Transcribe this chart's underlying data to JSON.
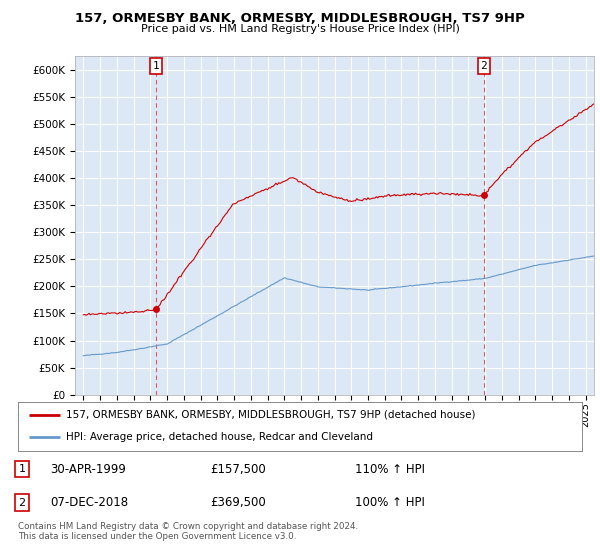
{
  "title": "157, ORMESBY BANK, ORMESBY, MIDDLESBROUGH, TS7 9HP",
  "subtitle": "Price paid vs. HM Land Registry's House Price Index (HPI)",
  "ylabel_ticks": [
    "£0",
    "£50K",
    "£100K",
    "£150K",
    "£200K",
    "£250K",
    "£300K",
    "£350K",
    "£400K",
    "£450K",
    "£500K",
    "£550K",
    "£600K"
  ],
  "ytick_vals": [
    0,
    50000,
    100000,
    150000,
    200000,
    250000,
    300000,
    350000,
    400000,
    450000,
    500000,
    550000,
    600000
  ],
  "ylim": [
    0,
    625000
  ],
  "xlim_start": 1994.5,
  "xlim_end": 2025.5,
  "sale1_x": 1999.33,
  "sale1_y": 157500,
  "sale2_x": 2018.92,
  "sale2_y": 369500,
  "legend_line1": "157, ORMESBY BANK, ORMESBY, MIDDLESBROUGH, TS7 9HP (detached house)",
  "legend_line2": "HPI: Average price, detached house, Redcar and Cleveland",
  "table_row1": [
    "1",
    "30-APR-1999",
    "£157,500",
    "110% ↑ HPI"
  ],
  "table_row2": [
    "2",
    "07-DEC-2018",
    "£369,500",
    "100% ↑ HPI"
  ],
  "footer": "Contains HM Land Registry data © Crown copyright and database right 2024.\nThis data is licensed under the Open Government Licence v3.0.",
  "red_color": "#cc0000",
  "blue_color": "#6699cc",
  "bg_color": "#ffffff",
  "plot_bg_color": "#dce8f5",
  "grid_color": "#ffffff"
}
